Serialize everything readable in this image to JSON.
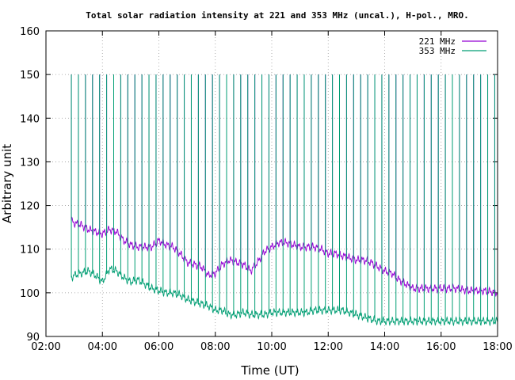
{
  "chart_data": {
    "type": "line",
    "title": "Total solar radiation intensity at 221 and 353 MHz (uncal.), H-pol., MRO.",
    "xlabel": "Time (UT)",
    "ylabel": "Arbitrary unit",
    "xlim": [
      2,
      18
    ],
    "ylim": [
      90,
      160
    ],
    "x_ticks": [
      2,
      4,
      6,
      8,
      10,
      12,
      14,
      16,
      18
    ],
    "x_tick_labels": [
      "02:00",
      "04:00",
      "06:00",
      "08:00",
      "10:00",
      "12:00",
      "14:00",
      "16:00",
      "18:00"
    ],
    "y_ticks": [
      90,
      100,
      110,
      120,
      130,
      140,
      150,
      160
    ],
    "y_tick_labels": [
      "90",
      "100",
      "110",
      "120",
      "130",
      "140",
      "150",
      "160"
    ],
    "grid": true,
    "legend_position": "top-right",
    "spike_interval_hours": 0.25,
    "series": [
      {
        "name": "221 MHz",
        "color": "#9400d3",
        "x": [
          2.9,
          3.0,
          3.25,
          3.5,
          3.75,
          4.0,
          4.25,
          4.5,
          4.75,
          5.0,
          5.25,
          5.5,
          5.75,
          6.0,
          6.25,
          6.5,
          6.75,
          7.0,
          7.25,
          7.5,
          7.75,
          8.0,
          8.25,
          8.5,
          8.75,
          9.0,
          9.25,
          9.5,
          9.75,
          10.0,
          10.25,
          10.5,
          10.75,
          11.0,
          11.25,
          11.5,
          11.75,
          12.0,
          12.25,
          12.5,
          12.75,
          13.0,
          13.25,
          13.5,
          13.75,
          14.0,
          14.25,
          14.5,
          14.75,
          15.0,
          15.5,
          16.0,
          16.5,
          17.0,
          17.5,
          18.0
        ],
        "y": [
          116.5,
          116,
          115.5,
          114.5,
          114,
          113.5,
          114.5,
          114,
          112,
          111,
          110.5,
          110.5,
          110.5,
          112,
          111,
          110.5,
          109,
          107,
          106.5,
          106,
          104,
          104.5,
          106.5,
          107.5,
          107,
          106.5,
          105,
          107,
          109.5,
          110.5,
          111.5,
          111.5,
          111,
          110.5,
          110.5,
          110.5,
          110,
          109,
          109,
          108.5,
          108,
          107.5,
          107.5,
          107,
          106,
          105,
          104.5,
          103,
          102,
          101,
          101,
          101,
          101,
          100.5,
          100.5,
          100
        ],
        "spike_peak": 150
      },
      {
        "name": "353 MHz",
        "color": "#009e73",
        "x": [
          2.9,
          3.0,
          3.25,
          3.5,
          3.75,
          4.0,
          4.25,
          4.5,
          4.75,
          5.0,
          5.25,
          5.5,
          5.75,
          6.0,
          6.25,
          6.5,
          6.75,
          7.0,
          7.25,
          7.5,
          7.75,
          8.0,
          8.25,
          8.5,
          8.75,
          9.0,
          9.25,
          9.5,
          9.75,
          10.0,
          10.25,
          10.5,
          10.75,
          11.0,
          11.25,
          11.5,
          11.75,
          12.0,
          12.25,
          12.5,
          12.75,
          13.0,
          13.25,
          13.5,
          13.75,
          14.0,
          14.25,
          14.5,
          14.75,
          15.0,
          15.5,
          16.0,
          16.5,
          17.0,
          17.5,
          18.0
        ],
        "y": [
          103.5,
          104,
          104.5,
          105,
          104,
          102.5,
          105.5,
          105,
          103.5,
          102.5,
          103,
          102,
          101,
          100.5,
          100,
          100,
          99.5,
          98.5,
          98,
          97.5,
          97,
          96,
          96,
          95,
          95,
          95.5,
          95,
          95,
          95,
          95.5,
          95.5,
          95.5,
          95.5,
          95.5,
          95.5,
          96,
          96,
          96,
          96,
          96,
          95.5,
          95,
          94.5,
          94,
          93.5,
          93.5,
          93.5,
          93.5,
          93.5,
          93.5,
          93.5,
          93.5,
          93.5,
          93.5,
          93.5,
          93.5
        ],
        "spike_peak": 150
      }
    ]
  }
}
